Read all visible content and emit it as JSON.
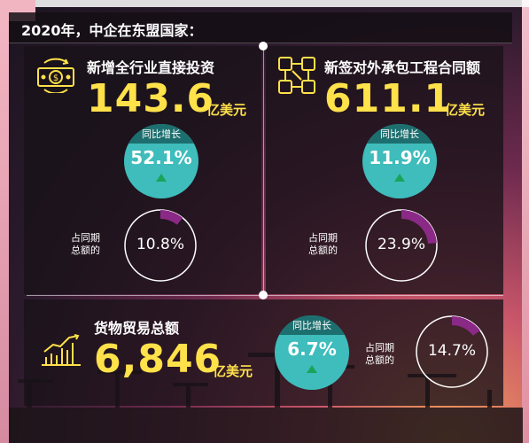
{
  "header": {
    "title": "2020年，中企在东盟国家："
  },
  "blocks": {
    "investment": {
      "title": "新增全行业直接投资",
      "value": "143.6",
      "unit": "亿美元",
      "growth_label": "同比增长",
      "growth": "52.1%",
      "share_label_1": "占同期",
      "share_label_2": "总额的",
      "share": "10.8%",
      "share_fraction": 0.108,
      "icon": "money-icon"
    },
    "contracts": {
      "title": "新签对外承包工程合同额",
      "value": "611.1",
      "unit": "亿美元",
      "growth_label": "同比增长",
      "growth": "11.9%",
      "share_label_1": "占同期",
      "share_label_2": "总额的",
      "share": "23.9%",
      "share_fraction": 0.239,
      "icon": "handshake-icon"
    },
    "trade": {
      "title": "货物贸易总额",
      "value": "6,846",
      "unit": "亿美元",
      "growth_label": "同比增长",
      "growth": "6.7%",
      "share_label_1": "占同期",
      "share_label_2": "总额的",
      "share": "14.7%",
      "share_fraction": 0.147,
      "icon": "bar-chart-icon"
    }
  },
  "colors": {
    "highlight": "#ffe14a",
    "growth_circle": "#3fbcbc",
    "growth_cap": "#1d6f6f",
    "ring_arc": "#8a2a86",
    "up_arrow": "#1aa35a"
  }
}
